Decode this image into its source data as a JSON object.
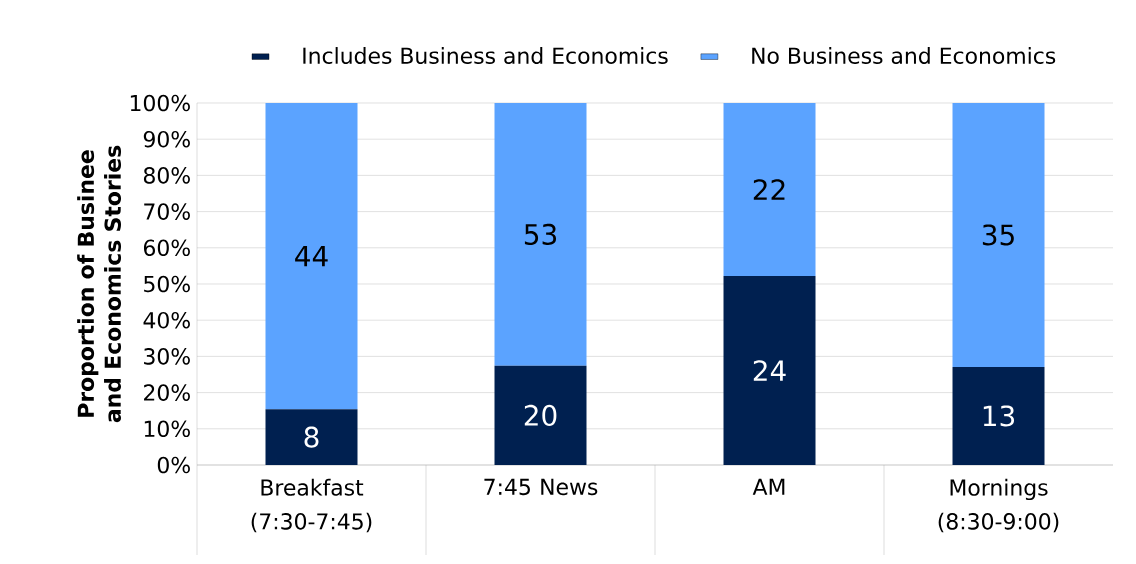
{
  "chart_data": {
    "type": "bar",
    "stacked": true,
    "ylabel": "Proportion of Businee and Economics Stories",
    "categories": [
      "Breakfast (7:30-7:45)",
      "7:45 News",
      "AM",
      "Mornings (8:30-9:00)"
    ],
    "series": [
      {
        "name": "Includes Business and Economics",
        "color": "#002050",
        "values": [
          15.4,
          27.4,
          52.2,
          27.1
        ]
      },
      {
        "name": "No Business and Economics",
        "color": "#5ba3ff",
        "values": [
          84.6,
          72.6,
          47.8,
          72.9
        ]
      }
    ],
    "annotations": [
      "8",
      "20",
      "24",
      "13",
      "44",
      "53",
      "22",
      "35"
    ],
    "ylim": [
      0,
      100
    ],
    "yticks": [
      {
        "value": 0,
        "label": "0%"
      },
      {
        "value": 10,
        "label": "10%"
      },
      {
        "value": 20,
        "label": "20%"
      },
      {
        "value": 30,
        "label": "30%"
      },
      {
        "value": 40,
        "label": "40%"
      },
      {
        "value": 50,
        "label": "50%"
      },
      {
        "value": 60,
        "label": "60%"
      },
      {
        "value": 70,
        "label": "70%"
      },
      {
        "value": 80,
        "label": "80%"
      },
      {
        "value": 90,
        "label": "90%"
      },
      {
        "value": 100,
        "label": "100%"
      }
    ],
    "grid": "y",
    "legend": "top"
  }
}
